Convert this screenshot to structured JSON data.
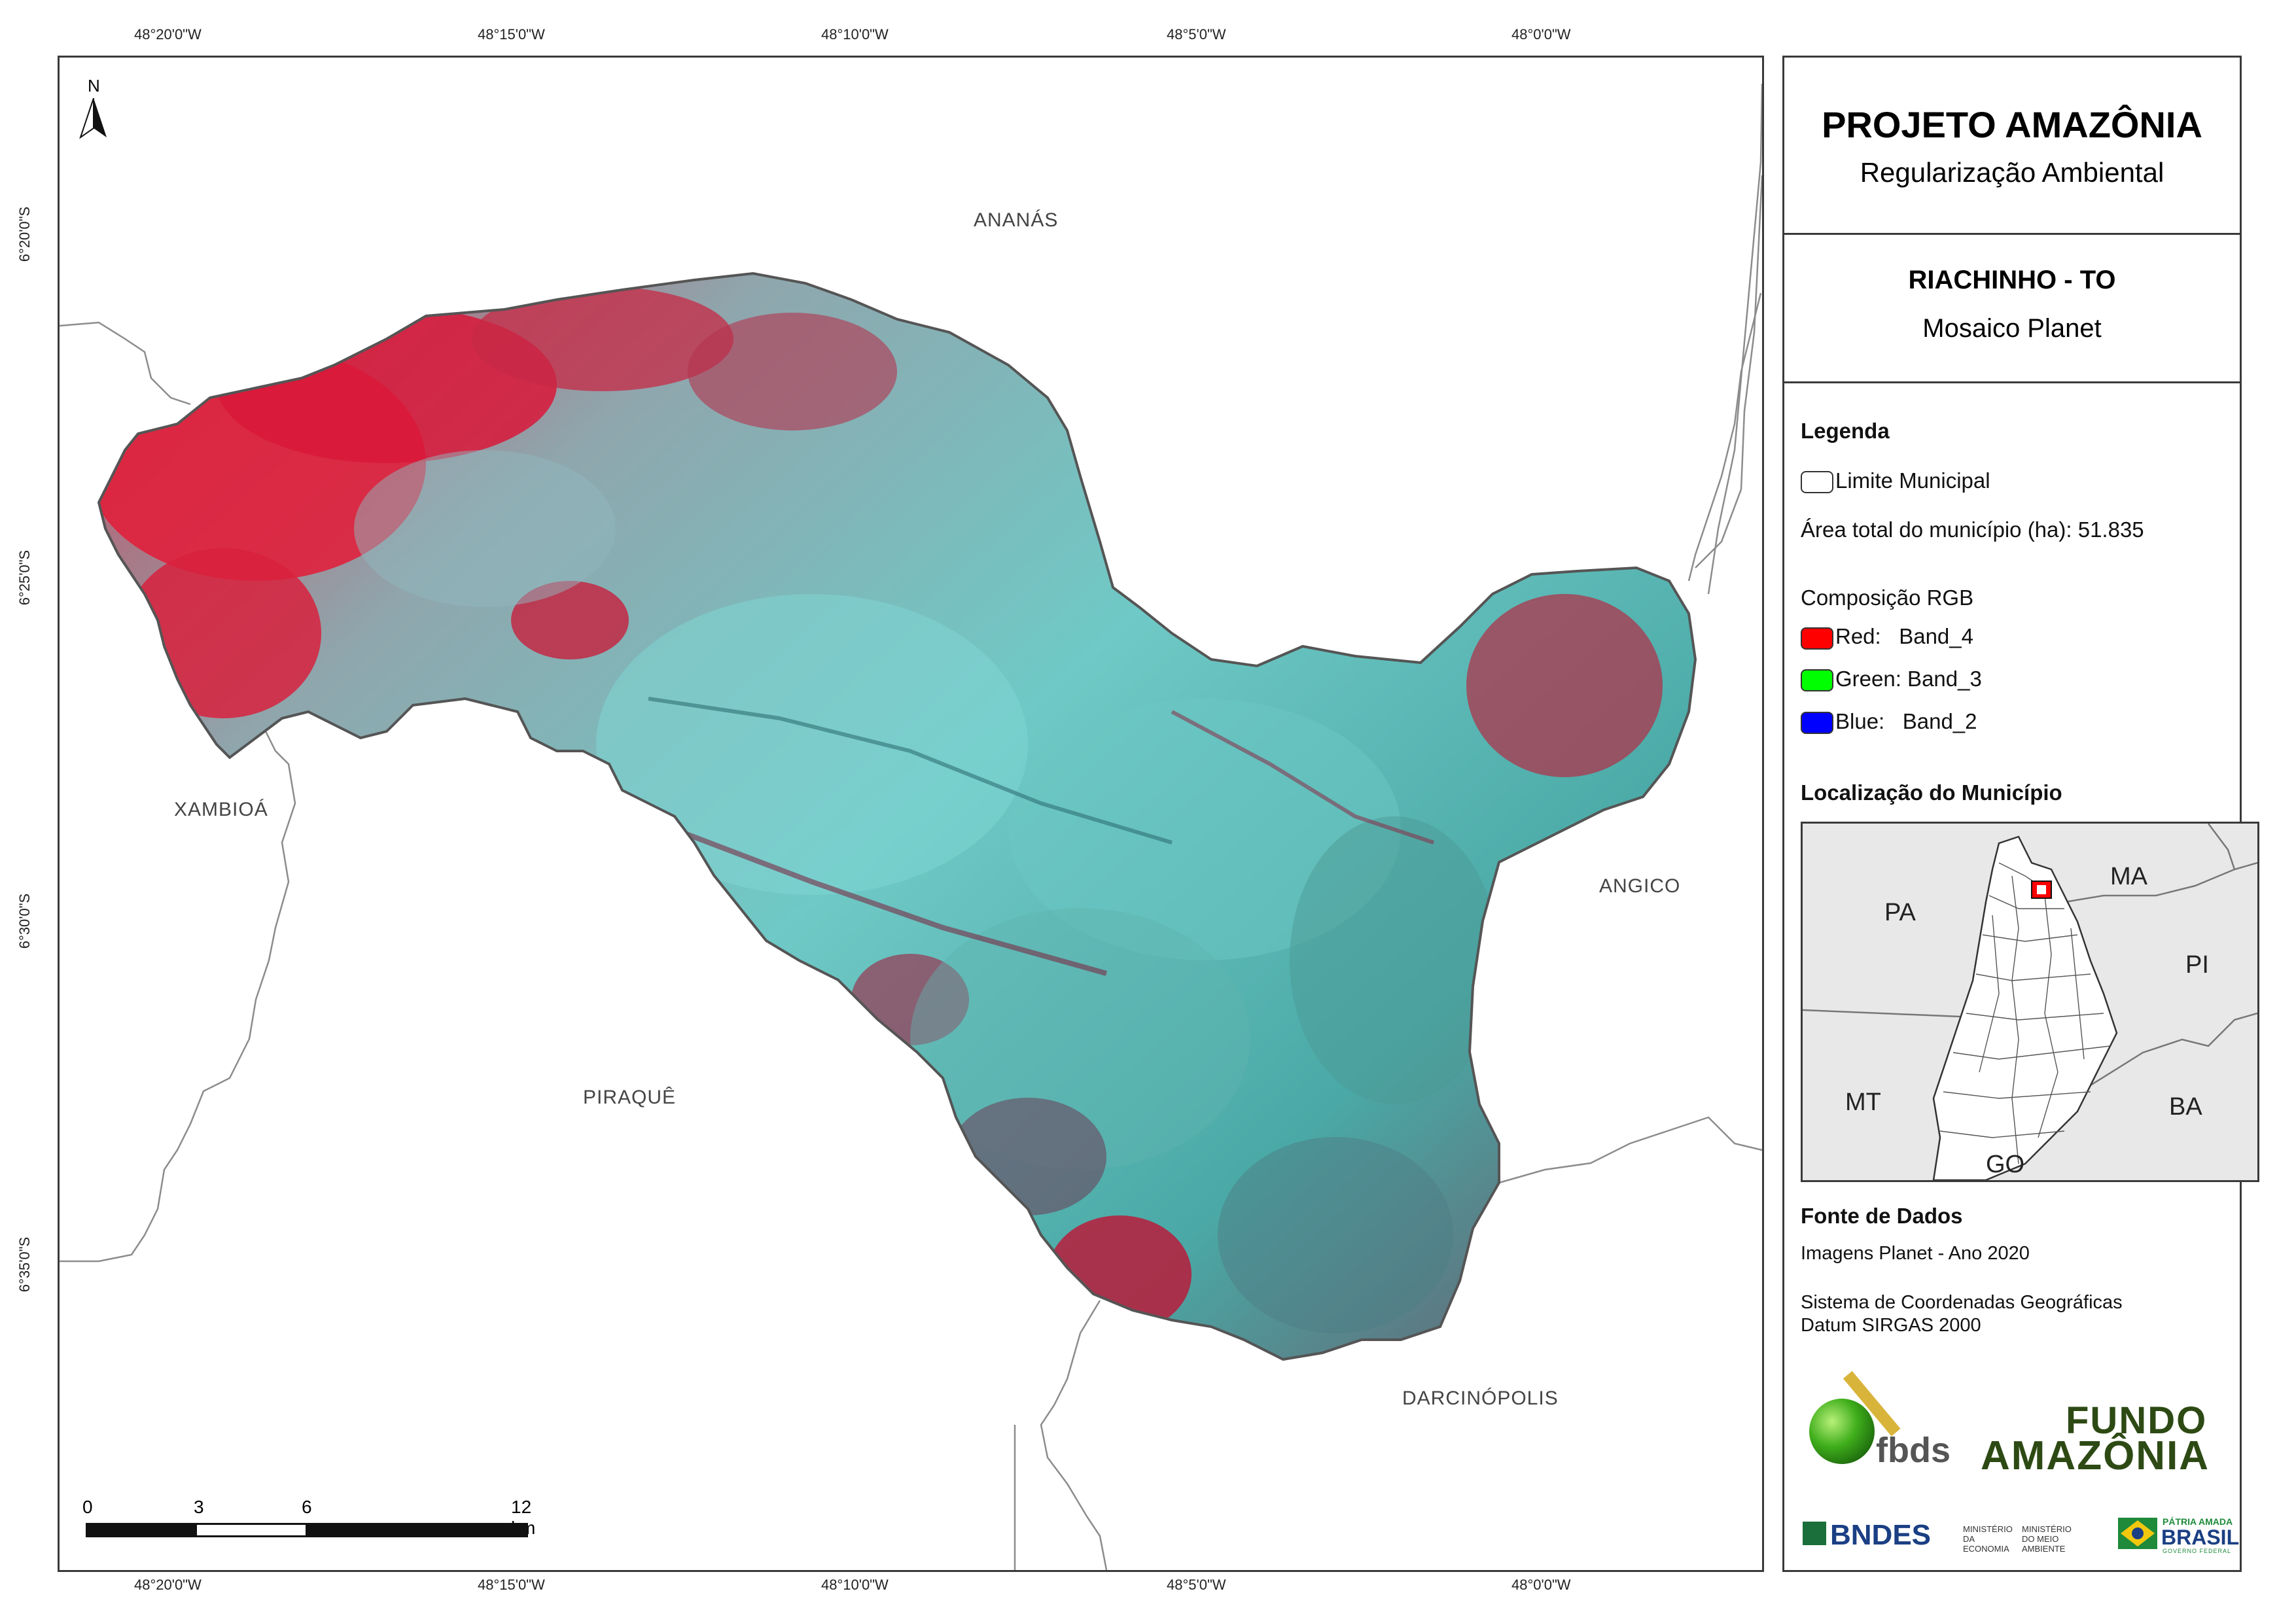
{
  "coords": {
    "lon": [
      "48°20'0\"W",
      "48°15'0\"W",
      "48°10'0\"W",
      "48°5'0\"W",
      "48°0'0\"W"
    ],
    "lat": [
      "6°20'0\"S",
      "6°25'0\"S",
      "6°30'0\"S",
      "6°35'0\"S"
    ]
  },
  "map": {
    "north": "N",
    "neighbors": {
      "ananas": "ANANÁS",
      "xambioa": "XAMBIOÁ",
      "angico": "ANGICO",
      "piraque": "PIRAQUÊ",
      "darcinopolis": "DARCINÓPOLIS"
    },
    "scale": {
      "t0": "0",
      "t1": "3",
      "t2": "6",
      "t3": "12 km"
    }
  },
  "panel": {
    "project_title": "PROJETO AMAZÔNIA",
    "project_subtitle": "Regularização Ambiental",
    "municipality_title": "RIACHINHO - TO",
    "municipality_subtitle": "Mosaico Planet",
    "legend_title": "Legenda",
    "limit_label": "Limite Municipal",
    "area_label": "Área total do município (ha): 51.835",
    "rgb_title": "Composição RGB",
    "rgb": [
      {
        "label": "Red:   Band_4",
        "color": "#ff0000"
      },
      {
        "label": "Green: Band_3",
        "color": "#00ff00"
      },
      {
        "label": "Blue:   Band_2",
        "color": "#0000ff"
      }
    ],
    "location_title": "Localização do Município",
    "inset_states": {
      "pa": "PA",
      "ma": "MA",
      "pi": "PI",
      "mt": "MT",
      "ba": "BA",
      "go": "GO"
    },
    "sources_title": "Fonte de Dados",
    "source_1": "Imagens Planet - Ano 2020",
    "source_2": "Sistema de Coordenadas Geográficas",
    "source_3": "Datum SIRGAS 2000",
    "logos": {
      "fbds": "fbds",
      "fundo_1": "FUNDO",
      "fundo_2": "AMAZÔNIA",
      "bndes": "BNDES",
      "min_economia": "MINISTÉRIO DA ECONOMIA",
      "min_ambiente": "MINISTÉRIO DO MEIO AMBIENTE",
      "patria": "PÁTRIA AMADA",
      "brasil": "BRASIL",
      "governo": "GOVERNO FEDERAL"
    }
  }
}
